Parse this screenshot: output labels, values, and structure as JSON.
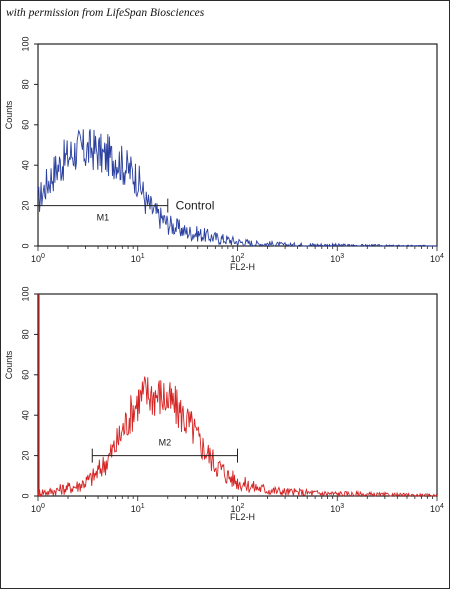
{
  "caption": "with permission from LifeSpan Biosciences",
  "chart_data": [
    {
      "type": "line",
      "xlabel": "FL2-H",
      "ylabel": "Counts",
      "xscale": "log",
      "xlim": [
        1,
        10000
      ],
      "ylim": [
        0,
        100
      ],
      "yticks": [
        0,
        20,
        40,
        60,
        80,
        100
      ],
      "xtick_labels": [
        {
          "base": "10",
          "exp": "0",
          "value": 1
        },
        {
          "base": "10",
          "exp": "1",
          "value": 10
        },
        {
          "base": "10",
          "exp": "2",
          "value": 100
        },
        {
          "base": "10",
          "exp": "3",
          "value": 1000
        },
        {
          "base": "10",
          "exp": "4",
          "value": 10000
        }
      ],
      "series": [
        {
          "color": "#2a3f9e",
          "x": [
            1,
            1.2,
            1.5,
            1.8,
            2.2,
            2.6,
            3,
            3.5,
            4,
            4.5,
            5,
            5.5,
            6,
            7,
            8,
            9,
            10,
            11,
            12,
            14,
            16,
            18,
            20,
            25,
            30,
            40,
            50,
            60,
            80,
            100,
            130,
            160,
            200,
            300,
            500,
            1000,
            3000,
            10000
          ],
          "y": [
            22,
            30,
            38,
            42,
            46,
            48,
            47,
            48,
            47,
            44,
            45,
            43,
            44,
            40,
            38,
            36,
            33,
            28,
            22,
            18,
            15,
            13,
            11,
            9,
            7,
            6,
            5,
            4,
            3,
            2,
            1.5,
            1,
            1,
            0.5,
            0.5,
            0.3,
            0.1,
            0
          ]
        }
      ],
      "gate": {
        "label": "M1",
        "x_range": [
          1,
          20
        ],
        "y": 20
      },
      "annotations": [
        {
          "text": "Control",
          "x": 24,
          "y": 20
        }
      ]
    },
    {
      "type": "line",
      "xlabel": "FL2-H",
      "ylabel": "Counts",
      "xscale": "log",
      "xlim": [
        1,
        10000
      ],
      "ylim": [
        0,
        100
      ],
      "yticks": [
        0,
        20,
        40,
        60,
        80,
        100
      ],
      "xtick_labels": [
        {
          "base": "10",
          "exp": "0",
          "value": 1
        },
        {
          "base": "10",
          "exp": "1",
          "value": 10
        },
        {
          "base": "10",
          "exp": "2",
          "value": 100
        },
        {
          "base": "10",
          "exp": "3",
          "value": 1000
        },
        {
          "base": "10",
          "exp": "4",
          "value": 10000
        }
      ],
      "series": [
        {
          "color": "#d42424",
          "x": [
            1,
            1.3,
            1.6,
            2,
            2.5,
            3,
            3.5,
            4,
            5,
            6,
            7,
            8,
            9,
            10,
            12,
            14,
            16,
            18,
            20,
            24,
            28,
            32,
            36,
            40,
            50,
            60,
            70,
            80,
            100,
            130,
            160,
            200,
            300,
            500,
            1000,
            3000,
            10000
          ],
          "y": [
            2,
            2,
            3,
            4,
            5,
            7,
            9,
            12,
            18,
            25,
            32,
            38,
            43,
            47,
            51,
            50,
            50,
            49,
            47,
            44,
            40,
            36,
            33,
            28,
            21,
            16,
            13,
            10,
            7,
            5,
            4,
            3,
            2,
            1.5,
            1,
            0.5,
            0.2
          ]
        }
      ],
      "gate": {
        "label": "M2",
        "x_range": [
          3.5,
          100
        ],
        "y": 20
      },
      "annotations": []
    }
  ]
}
